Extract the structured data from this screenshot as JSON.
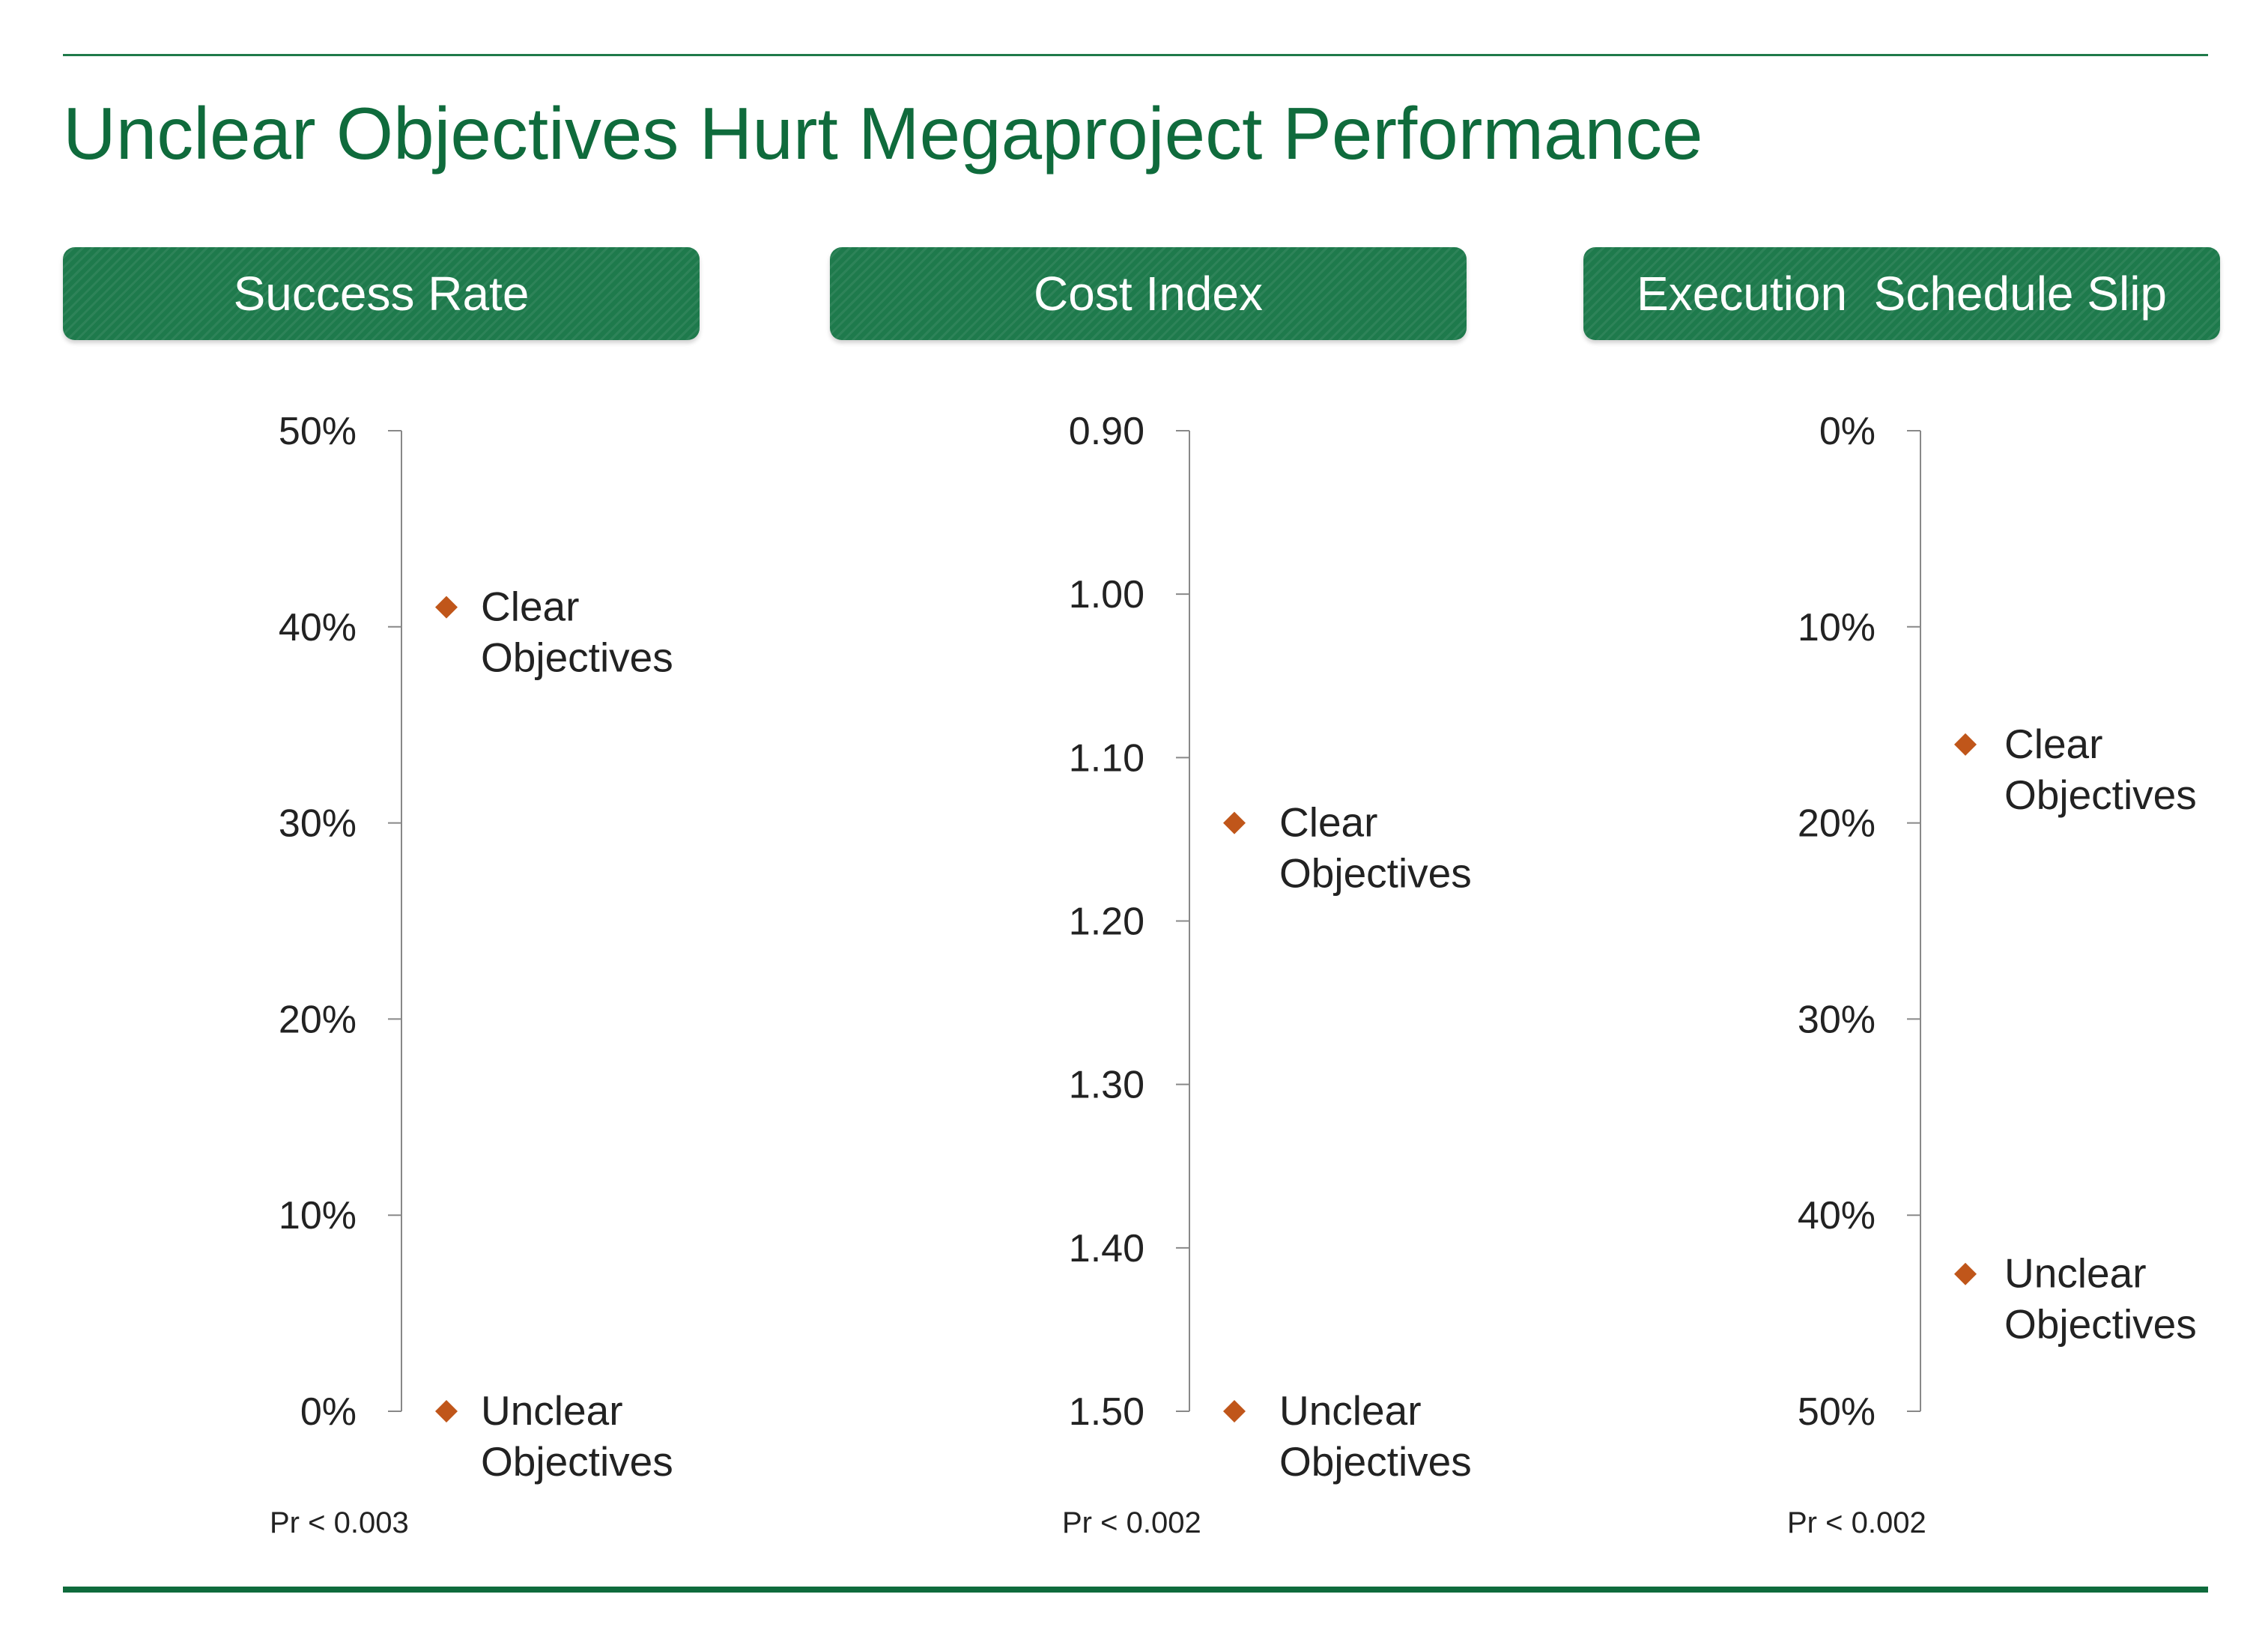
{
  "title": "Unclear Objectives Hurt Megaproject Performance",
  "colors": {
    "brand_green": "#0f6b3c",
    "header_green": "#1e7a4c",
    "marker": "#c0561a",
    "axis": "#888888",
    "text": "#222222"
  },
  "panels": [
    {
      "header": "Success Rate",
      "p_value": "Pr <  0.003"
    },
    {
      "header": "Cost Index",
      "p_value": "Pr <  0.002"
    },
    {
      "header": "Execution  Schedule Slip",
      "p_value": "Pr <  0.002"
    }
  ],
  "chart_data": [
    {
      "type": "scatter",
      "title": "Success Rate",
      "ylim": [
        0,
        0.5
      ],
      "y_inverted": false,
      "y_ticks": [
        0.5,
        0.4,
        0.3,
        0.2,
        0.1,
        0
      ],
      "y_tick_labels": [
        "50%",
        "40%",
        "30%",
        "20%",
        "10%",
        "0%"
      ],
      "points": [
        {
          "label": [
            "Clear",
            "Objectives"
          ],
          "y": 0.41
        },
        {
          "label": [
            "Unclear",
            "Objectives"
          ],
          "y": 0.0
        }
      ],
      "annotation": "Pr <  0.003",
      "grid": false,
      "marker": "diamond"
    },
    {
      "type": "scatter",
      "title": "Cost Index",
      "ylim": [
        0.9,
        1.5
      ],
      "y_inverted": true,
      "y_ticks": [
        0.9,
        1.0,
        1.1,
        1.2,
        1.3,
        1.4,
        1.5
      ],
      "y_tick_labels": [
        "0.90",
        "1.00",
        "1.10",
        "1.20",
        "1.30",
        "1.40",
        "1.50"
      ],
      "points": [
        {
          "label": [
            "Clear",
            "Objectives"
          ],
          "y": 1.14
        },
        {
          "label": [
            "Unclear",
            "Objectives"
          ],
          "y": 1.5
        }
      ],
      "annotation": "Pr <  0.002",
      "grid": false,
      "marker": "diamond"
    },
    {
      "type": "scatter",
      "title": "Execution  Schedule Slip",
      "ylim": [
        0,
        0.5
      ],
      "y_inverted": true,
      "y_ticks": [
        0,
        0.1,
        0.2,
        0.3,
        0.4,
        0.5
      ],
      "y_tick_labels": [
        "0%",
        "10%",
        "20%",
        "30%",
        "40%",
        "50%"
      ],
      "points": [
        {
          "label": [
            "Clear",
            "Objectives"
          ],
          "y": 0.16
        },
        {
          "label": [
            "Unclear",
            "Objectives"
          ],
          "y": 0.43
        }
      ],
      "annotation": "Pr <  0.002",
      "grid": false,
      "marker": "diamond"
    }
  ]
}
